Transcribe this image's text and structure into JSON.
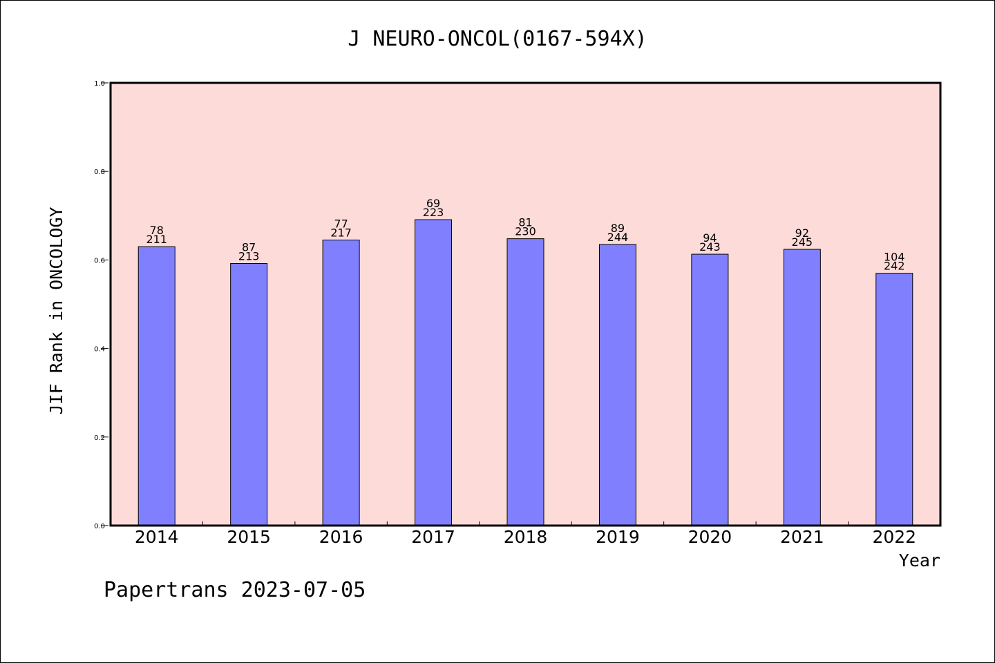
{
  "chart_data": {
    "type": "bar",
    "title": "J NEURO-ONCOL(0167-594X)",
    "xlabel": "Year",
    "ylabel": "JIF Rank in ONCOLOGY",
    "ylim": [
      0,
      1.0
    ],
    "yticks": [
      "0.0",
      "0.2",
      "0.4",
      "0.6",
      "0.8",
      "1.0"
    ],
    "categories": [
      "2014",
      "2015",
      "2016",
      "2017",
      "2018",
      "2019",
      "2020",
      "2021",
      "2022"
    ],
    "values": [
      0.63,
      0.592,
      0.645,
      0.691,
      0.648,
      0.635,
      0.613,
      0.624,
      0.57
    ],
    "rank": [
      "78",
      "87",
      "77",
      "69",
      "81",
      "89",
      "94",
      "92",
      "104"
    ],
    "total": [
      "211",
      "213",
      "217",
      "223",
      "230",
      "244",
      "243",
      "245",
      "242"
    ],
    "grid": false,
    "colors": {
      "plot_background": "#fddbd8",
      "bar_fill": "#8080ff",
      "bar_stroke": "#000000"
    }
  },
  "footer": {
    "text": "Papertrans 2023-07-05"
  }
}
